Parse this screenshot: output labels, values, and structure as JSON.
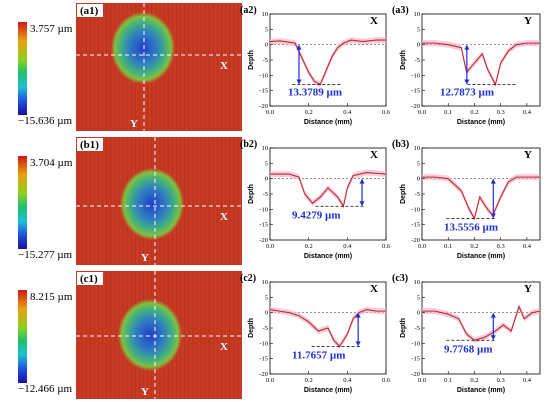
{
  "rows": [
    {
      "map": {
        "label": "(a1)",
        "scale_max": "3.757 µm",
        "scale_min": "−15.636 µm",
        "axis_x": "X",
        "axis_y": "Y"
      },
      "left": {
        "label": "(a2)",
        "dir": "X",
        "depth": "13.3789 µm"
      },
      "right": {
        "label": "(a3)",
        "dir": "Y",
        "depth": "12.7873 µm"
      }
    },
    {
      "map": {
        "label": "(b1)",
        "scale_max": "3.704 µm",
        "scale_min": "−15.277 µm",
        "axis_x": "X",
        "axis_y": "Y"
      },
      "left": {
        "label": "(b2)",
        "dir": "X",
        "depth": "9.4279 µm"
      },
      "right": {
        "label": "(b3)",
        "dir": "Y",
        "depth": "13.5556 µm"
      }
    },
    {
      "map": {
        "label": "(c1)",
        "scale_max": "8.215 µm",
        "scale_min": "−12.466 µm",
        "axis_x": "X",
        "axis_y": "Y"
      },
      "left": {
        "label": "(c2)",
        "dir": "X",
        "depth": "11.7657 µm"
      },
      "right": {
        "label": "(c3)",
        "dir": "Y",
        "depth": "9.7768 µm"
      }
    }
  ],
  "chart_data": [
    {
      "type": "line",
      "panel": "(a2)",
      "xlabel": "Distance (mm)",
      "ylabel": "Depth",
      "xlim": [
        0.0,
        0.6
      ],
      "ylim": [
        -20,
        10
      ],
      "xticks": [
        "0.0",
        "0.2",
        "0.4",
        "0.6"
      ],
      "yticks": [
        "10",
        "5",
        "0",
        "-5",
        "-10",
        "-15",
        "-20"
      ],
      "x": [
        0.0,
        0.05,
        0.1,
        0.13,
        0.17,
        0.2,
        0.23,
        0.26,
        0.28,
        0.3,
        0.32,
        0.35,
        0.38,
        0.42,
        0.48,
        0.55,
        0.6
      ],
      "y": [
        1.0,
        1.2,
        0.8,
        0.5,
        -5,
        -9,
        -12,
        -13,
        -10,
        -7,
        -4,
        -1,
        0.5,
        1.5,
        1.0,
        1.5,
        1.5
      ]
    },
    {
      "type": "line",
      "panel": "(a3)",
      "xlabel": "Distance (mm)",
      "ylabel": "Depth",
      "xlim": [
        0.0,
        0.45
      ],
      "ylim": [
        -20,
        10
      ],
      "xticks": [
        "0.0",
        "0.1",
        "0.2",
        "0.3",
        "0.4"
      ],
      "yticks": [
        "10",
        "5",
        "0",
        "-5",
        "-10",
        "-15",
        "-20"
      ],
      "x": [
        0.0,
        0.05,
        0.1,
        0.15,
        0.17,
        0.2,
        0.23,
        0.25,
        0.28,
        0.3,
        0.33,
        0.36,
        0.4,
        0.45
      ],
      "y": [
        0.5,
        0.5,
        0.0,
        -1,
        -9,
        -6,
        -3,
        -8,
        -13,
        -6,
        -2,
        0.0,
        0.5,
        0.5
      ]
    },
    {
      "type": "line",
      "panel": "(b2)",
      "xlabel": "Distance (mm)",
      "ylabel": "Depth",
      "xlim": [
        0.0,
        0.6
      ],
      "ylim": [
        -20,
        10
      ],
      "xticks": [
        "0.0",
        "0.2",
        "0.4",
        "0.6"
      ],
      "yticks": [
        "10",
        "5",
        "0",
        "-5",
        "-10",
        "-15",
        "-20"
      ],
      "x": [
        0.0,
        0.1,
        0.15,
        0.18,
        0.22,
        0.26,
        0.3,
        0.35,
        0.38,
        0.4,
        0.43,
        0.5,
        0.6
      ],
      "y": [
        1.5,
        1.5,
        0.5,
        -5,
        -8,
        -6,
        -3,
        -6,
        -9,
        -3,
        1,
        2,
        1.5
      ]
    },
    {
      "type": "line",
      "panel": "(b3)",
      "xlabel": "Distance (mm)",
      "ylabel": "Depth",
      "xlim": [
        0.0,
        0.45
      ],
      "ylim": [
        -20,
        10
      ],
      "xticks": [
        "0.0",
        "0.1",
        "0.2",
        "0.3",
        "0.4"
      ],
      "yticks": [
        "10",
        "5",
        "0",
        "-5",
        "-10",
        "-15",
        "-20"
      ],
      "x": [
        0.0,
        0.05,
        0.1,
        0.15,
        0.18,
        0.2,
        0.22,
        0.25,
        0.27,
        0.3,
        0.33,
        0.36,
        0.4,
        0.45
      ],
      "y": [
        0.5,
        0.5,
        0.0,
        -4,
        -10,
        -13,
        -6,
        -10,
        -12,
        -6,
        -1,
        0.5,
        0.5,
        0.5
      ]
    },
    {
      "type": "line",
      "panel": "(c2)",
      "xlabel": "Distance (mm)",
      "ylabel": "Depth",
      "xlim": [
        0.0,
        0.6
      ],
      "ylim": [
        -20,
        10
      ],
      "xticks": [
        "0.0",
        "0.2",
        "0.4",
        "0.6"
      ],
      "yticks": [
        "10",
        "5",
        "0",
        "-5",
        "-10",
        "-15",
        "-20"
      ],
      "x": [
        0.0,
        0.05,
        0.1,
        0.15,
        0.2,
        0.25,
        0.3,
        0.33,
        0.36,
        0.4,
        0.43,
        0.46,
        0.5,
        0.55,
        0.6
      ],
      "y": [
        1.0,
        0.5,
        0.0,
        -1,
        -3,
        -6,
        -5,
        -9,
        -11,
        -7,
        -2,
        0.0,
        1.0,
        0.5,
        0.5
      ]
    },
    {
      "type": "line",
      "panel": "(c3)",
      "xlabel": "Distance (mm)",
      "ylabel": "Depth",
      "xlim": [
        0.0,
        0.45
      ],
      "ylim": [
        -20,
        10
      ],
      "xticks": [
        "0.0",
        "0.1",
        "0.2",
        "0.3",
        "0.4"
      ],
      "yticks": [
        "10",
        "5",
        "0",
        "-5",
        "-10",
        "-15",
        "-20"
      ],
      "x": [
        0.0,
        0.05,
        0.1,
        0.14,
        0.17,
        0.2,
        0.24,
        0.28,
        0.31,
        0.34,
        0.37,
        0.39,
        0.42,
        0.45
      ],
      "y": [
        0.5,
        0.5,
        -0.5,
        -2,
        -7,
        -9,
        -8,
        -6,
        -4,
        -6,
        2,
        -2,
        0.0,
        0.5
      ]
    }
  ],
  "colors": {
    "curve": "#c0282a",
    "band": "#f2b8cf",
    "arrow": "#1f2fd8",
    "map_base": "#c73a24"
  }
}
